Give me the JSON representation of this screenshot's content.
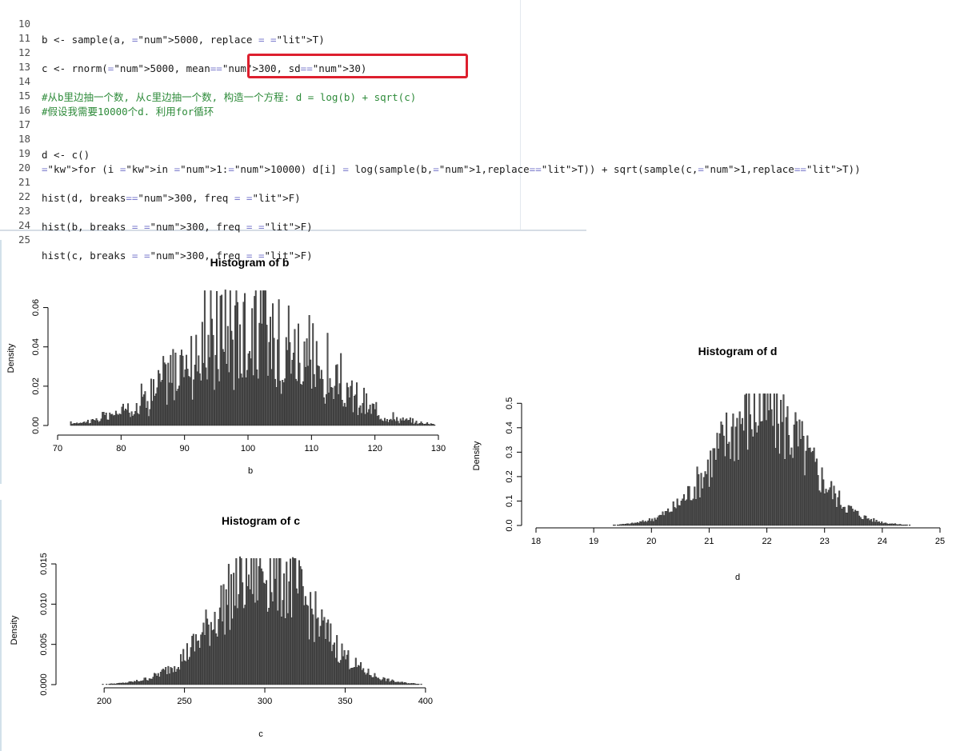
{
  "editor": {
    "lines": [
      {
        "num": "10",
        "code": "b <- sample(a, 5000, replace = T)"
      },
      {
        "num": "11",
        "code": ""
      },
      {
        "num": "12",
        "code": "c <- rnorm(5000, mean=300, sd=30)"
      },
      {
        "num": "13",
        "code": ""
      },
      {
        "num": "14",
        "code": "#从b里边抽一个数, 从c里边抽一个数, 构造一个方程: d = log(b) + sqrt(c)"
      },
      {
        "num": "15",
        "code": "#假设我需要10000个d. 利用for循环"
      },
      {
        "num": "16",
        "code": ""
      },
      {
        "num": "17",
        "code": ""
      },
      {
        "num": "18",
        "code": "d <- c()"
      },
      {
        "num": "19",
        "code": "for (i in 1:10000) d[i] = log(sample(b,1,replace=T)) + sqrt(sample(c,1,replace=T))"
      },
      {
        "num": "20",
        "code": ""
      },
      {
        "num": "21",
        "code": "hist(d, breaks=300, freq = F)"
      },
      {
        "num": "22",
        "code": ""
      },
      {
        "num": "23",
        "code": "hist(b, breaks = 300, freq = F)"
      },
      {
        "num": "24",
        "code": ""
      },
      {
        "num": "25",
        "code": "hist(c, breaks = 300, freq = F)"
      }
    ],
    "highlight_color": "#dd1f2e"
  },
  "chart_data": [
    {
      "id": "hist-b",
      "type": "bar",
      "title": "Histogram of b",
      "xlabel": "b",
      "ylabel": "Density",
      "xlim": [
        70,
        130
      ],
      "ylim": [
        0,
        0.07
      ],
      "xticks": [
        "70",
        "80",
        "90",
        "100",
        "110",
        "120",
        "130"
      ],
      "yticks": [
        "0.00",
        "0.02",
        "0.04",
        "0.06"
      ],
      "distribution": {
        "shape": "normal",
        "mean": 100,
        "sd": 10,
        "min": 72,
        "max": 129.5,
        "peak_density": 0.066
      },
      "bar_color": "#555555"
    },
    {
      "id": "hist-d",
      "type": "bar",
      "title": "Histogram of d",
      "xlabel": "d",
      "ylabel": "Density",
      "xlim": [
        18,
        25
      ],
      "ylim": [
        0,
        0.55
      ],
      "xticks": [
        "18",
        "19",
        "20",
        "21",
        "22",
        "23",
        "24",
        "25"
      ],
      "yticks": [
        "0.0",
        "0.1",
        "0.2",
        "0.3",
        "0.4",
        "0.5"
      ],
      "distribution": {
        "shape": "normal",
        "mean": 21.9,
        "sd": 0.78,
        "min": 18,
        "max": 24.9,
        "peak_density": 0.52
      },
      "bar_color": "#555555"
    },
    {
      "id": "hist-c",
      "type": "bar",
      "title": "Histogram of c",
      "xlabel": "c",
      "ylabel": "Density",
      "xlim": [
        180,
        415
      ],
      "ylim": [
        0,
        0.016
      ],
      "xticks": [
        "200",
        "250",
        "300",
        "350",
        "400"
      ],
      "yticks": [
        "0.000",
        "0.005",
        "0.010",
        "0.015"
      ],
      "distribution": {
        "shape": "normal",
        "mean": 300,
        "sd": 30,
        "min": 180,
        "max": 415,
        "peak_density": 0.0155
      },
      "bar_color": "#555555"
    }
  ]
}
